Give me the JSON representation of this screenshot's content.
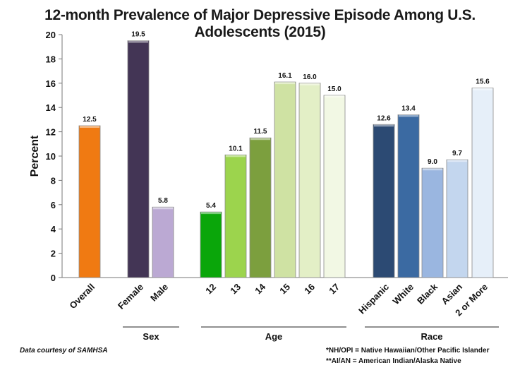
{
  "chart_data": {
    "type": "bar",
    "title": "12-month Prevalence of Major Depressive Episode Among U.S. Adolescents (2015)",
    "ylabel": "Percent",
    "xlabel": "",
    "ylim": [
      0,
      20
    ],
    "yticks": [
      0,
      2,
      4,
      6,
      8,
      10,
      12,
      14,
      16,
      18,
      20
    ],
    "categories": [
      "Overall",
      "Female",
      "Male",
      "12",
      "13",
      "14",
      "15",
      "16",
      "17",
      "Hispanic",
      "White",
      "Black",
      "Asian",
      "2 or More"
    ],
    "values": [
      12.5,
      19.5,
      5.8,
      5.4,
      10.1,
      11.5,
      16.1,
      16.0,
      15.0,
      12.6,
      13.4,
      9.0,
      9.7,
      15.6
    ],
    "value_labels": [
      "12.5",
      "19.5",
      "5.8",
      "5.4",
      "10.1",
      "11.5",
      "16.1",
      "16.0",
      "15.0",
      "12.6",
      "13.4",
      "9.0",
      "9.7",
      "15.6"
    ],
    "colors": [
      "#f07a12",
      "#433555",
      "#bba9d3",
      "#0aa60a",
      "#9cd44d",
      "#7c9f3e",
      "#cfe2a3",
      "#e3efc6",
      "#f2f8e4",
      "#2c4a73",
      "#3b6aa2",
      "#9ab6e0",
      "#c3d6ee",
      "#e6eff9"
    ],
    "groups": [
      {
        "label": "Sex",
        "members": [
          "Female",
          "Male"
        ]
      },
      {
        "label": "Age",
        "members": [
          "12",
          "13",
          "14",
          "15",
          "16",
          "17"
        ]
      },
      {
        "label": "Race",
        "members": [
          "Hispanic",
          "White",
          "Black",
          "Asian",
          "2 or More"
        ]
      }
    ],
    "grid": false,
    "legend": "none"
  },
  "footer": {
    "credit": "Data courtesy of SAMHSA",
    "note1": "*NH/OPI = Native Hawaiian/Other Pacific Islander",
    "note2": "**AI/AN = American Indian/Alaska Native"
  }
}
